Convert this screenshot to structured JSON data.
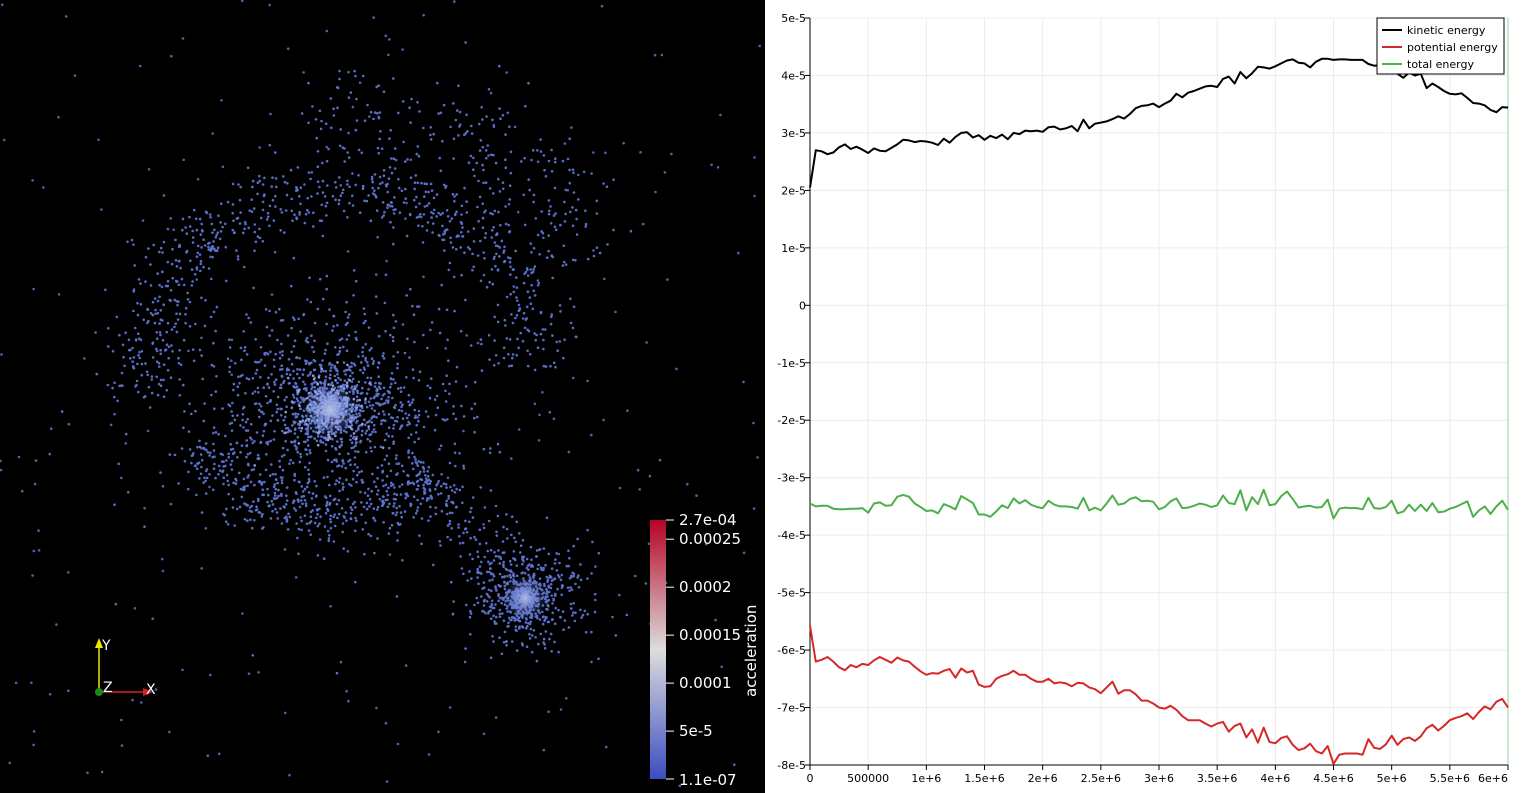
{
  "render_view": {
    "colorbar": {
      "title": "acceleration",
      "max_label": "2.7e-04",
      "min_label": "1.1e-07",
      "ticks": [
        {
          "label": "0.00025",
          "value": 0.00025
        },
        {
          "label": "0.0002",
          "value": 0.0002
        },
        {
          "label": "0.00015",
          "value": 0.00015
        },
        {
          "label": "0.0001",
          "value": 0.0001
        },
        {
          "label": "5e-5",
          "value": 5e-05
        }
      ],
      "range": [
        1.1e-07,
        0.00027
      ],
      "colors": [
        "#3b4cc0",
        "#dddddd",
        "#b40426"
      ]
    },
    "axes": {
      "x_label": "X",
      "y_label": "Y",
      "z_label": "Z"
    },
    "particle_color": "#5d74d0"
  },
  "chart_data": {
    "type": "line",
    "x": [
      0,
      50000,
      100000,
      150000,
      200000,
      250000,
      300000,
      350000,
      400000,
      450000,
      500000,
      550000,
      600000,
      650000,
      700000,
      750000,
      800000,
      850000,
      900000,
      950000,
      1000000,
      1050000,
      1100000,
      1150000,
      1200000,
      1250000,
      1300000,
      1350000,
      1400000,
      1450000,
      1500000,
      1550000,
      1600000,
      1650000,
      1700000,
      1750000,
      1800000,
      1850000,
      1900000,
      1950000,
      2000000,
      2050000,
      2100000,
      2150000,
      2200000,
      2250000,
      2300000,
      2350000,
      2400000,
      2450000,
      2500000,
      2550000,
      2600000,
      2650000,
      2700000,
      2750000,
      2800000,
      2850000,
      2900000,
      2950000,
      3000000,
      3050000,
      3100000,
      3150000,
      3200000,
      3250000,
      3300000,
      3350000,
      3400000,
      3450000,
      3500000,
      3550000,
      3600000,
      3650000,
      3700000,
      3750000,
      3800000,
      3850000,
      3900000,
      3950000,
      4000000,
      4050000,
      4100000,
      4150000,
      4200000,
      4250000,
      4300000,
      4350000,
      4400000,
      4450000,
      4500000,
      4550000,
      4600000,
      4650000,
      4700000,
      4750000,
      4800000,
      4850000,
      4900000,
      4950000,
      5000000,
      5050000,
      5100000,
      5150000,
      5200000,
      5250000,
      5300000,
      5350000,
      5400000,
      5450000,
      5500000,
      5550000,
      5600000,
      5650000,
      5700000,
      5750000,
      5800000,
      5850000,
      5900000,
      5950000,
      6000000
    ],
    "series": [
      {
        "name": "kinetic energy",
        "color": "#000000",
        "values": [
          2.05e-05,
          2.7e-05,
          2.68e-05,
          2.63e-05,
          2.66e-05,
          2.75e-05,
          2.8e-05,
          2.72e-05,
          2.76e-05,
          2.71e-05,
          2.65e-05,
          2.73e-05,
          2.69e-05,
          2.68e-05,
          2.74e-05,
          2.8e-05,
          2.88e-05,
          2.87e-05,
          2.84e-05,
          2.86e-05,
          2.85e-05,
          2.83e-05,
          2.79e-05,
          2.9e-05,
          2.83e-05,
          2.93e-05,
          3e-05,
          3.01e-05,
          2.92e-05,
          2.96e-05,
          2.88e-05,
          2.95e-05,
          2.91e-05,
          2.97e-05,
          2.89e-05,
          3e-05,
          2.98e-05,
          3.04e-05,
          3.03e-05,
          3.04e-05,
          3.02e-05,
          3.1e-05,
          3.11e-05,
          3.06e-05,
          3.08e-05,
          3.12e-05,
          3.03e-05,
          3.23e-05,
          3.08e-05,
          3.16e-05,
          3.18e-05,
          3.2e-05,
          3.24e-05,
          3.29e-05,
          3.25e-05,
          3.33e-05,
          3.43e-05,
          3.47e-05,
          3.48e-05,
          3.51e-05,
          3.45e-05,
          3.51e-05,
          3.56e-05,
          3.68e-05,
          3.62e-05,
          3.7e-05,
          3.73e-05,
          3.77e-05,
          3.81e-05,
          3.82e-05,
          3.8e-05,
          3.94e-05,
          3.98e-05,
          3.86e-05,
          4.06e-05,
          3.95e-05,
          4.04e-05,
          4.15e-05,
          4.14e-05,
          4.12e-05,
          4.16e-05,
          4.21e-05,
          4.26e-05,
          4.28e-05,
          4.22e-05,
          4.21e-05,
          4.14e-05,
          4.24e-05,
          4.29e-05,
          4.29e-05,
          4.27e-05,
          4.28e-05,
          4.28e-05,
          4.27e-05,
          4.27e-05,
          4.27e-05,
          4.2e-05,
          4.17e-05,
          4.18e-05,
          4.13e-05,
          4.09e-05,
          4.03e-05,
          3.96e-05,
          4.05e-05,
          4e-05,
          4.03e-05,
          3.78e-05,
          3.86e-05,
          3.8e-05,
          3.73e-05,
          3.68e-05,
          3.67e-05,
          3.69e-05,
          3.61e-05,
          3.52e-05,
          3.51e-05,
          3.48e-05,
          3.4e-05,
          3.36e-05,
          3.45e-05,
          3.44e-05
        ]
      },
      {
        "name": "potential energy",
        "color": "#d62728",
        "values": [
          -5.58e-05,
          -6.2e-05,
          -6.17e-05,
          -6.12e-05,
          -6.2e-05,
          -6.3e-05,
          -6.35e-05,
          -6.26e-05,
          -6.3e-05,
          -6.24e-05,
          -6.26e-05,
          -6.18e-05,
          -6.12e-05,
          -6.17e-05,
          -6.22e-05,
          -6.13e-05,
          -6.18e-05,
          -6.2e-05,
          -6.29e-05,
          -6.37e-05,
          -6.43e-05,
          -6.4e-05,
          -6.41e-05,
          -6.36e-05,
          -6.33e-05,
          -6.48e-05,
          -6.32e-05,
          -6.39e-05,
          -6.36e-05,
          -6.6e-05,
          -6.64e-05,
          -6.63e-05,
          -6.5e-05,
          -6.45e-05,
          -6.42e-05,
          -6.36e-05,
          -6.43e-05,
          -6.43e-05,
          -6.5e-05,
          -6.55e-05,
          -6.55e-05,
          -6.5e-05,
          -6.58e-05,
          -6.56e-05,
          -6.58e-05,
          -6.63e-05,
          -6.57e-05,
          -6.58e-05,
          -6.65e-05,
          -6.68e-05,
          -6.75e-05,
          -6.65e-05,
          -6.55e-05,
          -6.76e-05,
          -6.7e-05,
          -6.7e-05,
          -6.77e-05,
          -6.88e-05,
          -6.88e-05,
          -6.93e-05,
          -7e-05,
          -7.02e-05,
          -6.97e-05,
          -7.04e-05,
          -7.15e-05,
          -7.22e-05,
          -7.22e-05,
          -7.22e-05,
          -7.28e-05,
          -7.33e-05,
          -7.28e-05,
          -7.25e-05,
          -7.42e-05,
          -7.32e-05,
          -7.28e-05,
          -7.52e-05,
          -7.38e-05,
          -7.61e-05,
          -7.35e-05,
          -7.6e-05,
          -7.62e-05,
          -7.53e-05,
          -7.5e-05,
          -7.65e-05,
          -7.74e-05,
          -7.71e-05,
          -7.63e-05,
          -7.76e-05,
          -7.8e-05,
          -7.67e-05,
          -7.98e-05,
          -7.82e-05,
          -7.8e-05,
          -7.8e-05,
          -7.8e-05,
          -7.82e-05,
          -7.55e-05,
          -7.7e-05,
          -7.72e-05,
          -7.64e-05,
          -7.49e-05,
          -7.65e-05,
          -7.55e-05,
          -7.52e-05,
          -7.58e-05,
          -7.5e-05,
          -7.36e-05,
          -7.3e-05,
          -7.4e-05,
          -7.32e-05,
          -7.22e-05,
          -7.18e-05,
          -7.15e-05,
          -7.1e-05,
          -7.2e-05,
          -7.08e-05,
          -6.98e-05,
          -7.03e-05,
          -6.9e-05,
          -6.85e-05,
          -7e-05
        ]
      },
      {
        "name": "total energy",
        "color": "#4daf4a",
        "values": [
          -3.45e-05,
          -3.5e-05,
          -3.49e-05,
          -3.49e-05,
          -3.54e-05,
          -3.55e-05,
          -3.55e-05,
          -3.54e-05,
          -3.54e-05,
          -3.53e-05,
          -3.61e-05,
          -3.45e-05,
          -3.43e-05,
          -3.49e-05,
          -3.48e-05,
          -3.33e-05,
          -3.3e-05,
          -3.33e-05,
          -3.45e-05,
          -3.51e-05,
          -3.58e-05,
          -3.57e-05,
          -3.62e-05,
          -3.46e-05,
          -3.5e-05,
          -3.55e-05,
          -3.32e-05,
          -3.38e-05,
          -3.44e-05,
          -3.64e-05,
          -3.64e-05,
          -3.68e-05,
          -3.59e-05,
          -3.48e-05,
          -3.53e-05,
          -3.36e-05,
          -3.45e-05,
          -3.39e-05,
          -3.47e-05,
          -3.51e-05,
          -3.53e-05,
          -3.4e-05,
          -3.47e-05,
          -3.5e-05,
          -3.5e-05,
          -3.51e-05,
          -3.54e-05,
          -3.35e-05,
          -3.57e-05,
          -3.52e-05,
          -3.57e-05,
          -3.45e-05,
          -3.31e-05,
          -3.47e-05,
          -3.45e-05,
          -3.37e-05,
          -3.34e-05,
          -3.41e-05,
          -3.4e-05,
          -3.42e-05,
          -3.55e-05,
          -3.51e-05,
          -3.41e-05,
          -3.36e-05,
          -3.53e-05,
          -3.52e-05,
          -3.49e-05,
          -3.45e-05,
          -3.47e-05,
          -3.51e-05,
          -3.48e-05,
          -3.31e-05,
          -3.44e-05,
          -3.46e-05,
          -3.22e-05,
          -3.57e-05,
          -3.34e-05,
          -3.46e-05,
          -3.21e-05,
          -3.48e-05,
          -3.46e-05,
          -3.32e-05,
          -3.24e-05,
          -3.37e-05,
          -3.52e-05,
          -3.5e-05,
          -3.49e-05,
          -3.52e-05,
          -3.51e-05,
          -3.38e-05,
          -3.71e-05,
          -3.54e-05,
          -3.52e-05,
          -3.53e-05,
          -3.53e-05,
          -3.55e-05,
          -3.35e-05,
          -3.53e-05,
          -3.54e-05,
          -3.51e-05,
          -3.4e-05,
          -3.62e-05,
          -3.59e-05,
          -3.47e-05,
          -3.58e-05,
          -3.47e-05,
          -3.58e-05,
          -3.44e-05,
          -3.6e-05,
          -3.59e-05,
          -3.54e-05,
          -3.51e-05,
          -3.46e-05,
          -3.41e-05,
          -3.68e-05,
          -3.57e-05,
          -3.5e-05,
          -3.63e-05,
          -3.5e-05,
          -3.4e-05,
          -3.56e-05
        ]
      }
    ],
    "xlabel": "",
    "ylabel": "",
    "xlim": [
      0,
      6000000
    ],
    "ylim": [
      -8e-05,
      5e-05
    ],
    "x_ticks": [
      {
        "value": 0,
        "label": "0"
      },
      {
        "value": 500000,
        "label": "500000"
      },
      {
        "value": 1000000,
        "label": "1e+6"
      },
      {
        "value": 1500000,
        "label": "1.5e+6"
      },
      {
        "value": 2000000,
        "label": "2e+6"
      },
      {
        "value": 2500000,
        "label": "2.5e+6"
      },
      {
        "value": 3000000,
        "label": "3e+6"
      },
      {
        "value": 3500000,
        "label": "3.5e+6"
      },
      {
        "value": 4000000,
        "label": "4e+6"
      },
      {
        "value": 4500000,
        "label": "4.5e+6"
      },
      {
        "value": 5000000,
        "label": "5e+6"
      },
      {
        "value": 5500000,
        "label": "5.5e+6"
      },
      {
        "value": 6000000,
        "label": "6e+6"
      }
    ],
    "y_ticks": [
      {
        "value": 5e-05,
        "label": "5e-5"
      },
      {
        "value": 4e-05,
        "label": "4e-5"
      },
      {
        "value": 3e-05,
        "label": "3e-5"
      },
      {
        "value": 2e-05,
        "label": "2e-5"
      },
      {
        "value": 1e-05,
        "label": "1e-5"
      },
      {
        "value": 0,
        "label": "0"
      },
      {
        "value": -1e-05,
        "label": "-1e-5"
      },
      {
        "value": -2e-05,
        "label": "-2e-5"
      },
      {
        "value": -3e-05,
        "label": "-3e-5"
      },
      {
        "value": -4e-05,
        "label": "-4e-5"
      },
      {
        "value": -5e-05,
        "label": "-5e-5"
      },
      {
        "value": -6e-05,
        "label": "-6e-5"
      },
      {
        "value": -7e-05,
        "label": "-7e-5"
      },
      {
        "value": -8e-05,
        "label": "-8e-5"
      }
    ],
    "grid": true,
    "legend_position": "top-right"
  }
}
